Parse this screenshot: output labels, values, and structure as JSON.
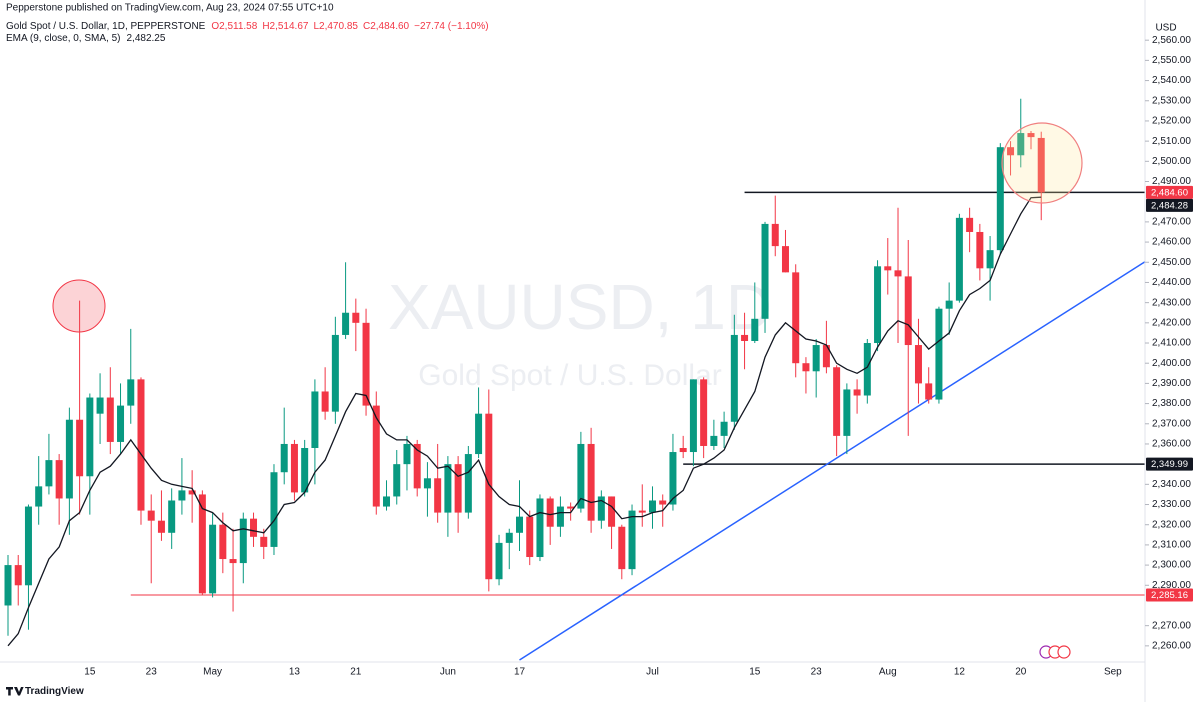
{
  "chart_data": {
    "type": "candlestick",
    "published": "Pepperstone published on TradingView.com, Aug 23, 2024 07:55 UTC+10",
    "title": "Gold Spot / U.S. Dollar, 1D, PEPPERSTONE",
    "ohlc_legend": [
      "O2,511.58",
      "H2,514.67",
      "L2,470.85",
      "C2,484.60",
      "−27.74 (−1.10%)"
    ],
    "watermark": [
      "XAUUSD, 1D",
      "Gold Spot / U.S. Dollar"
    ],
    "currency": "USD",
    "brand": "TradingView",
    "up_color": "#089981",
    "down_color": "#f23645",
    "categories": [
      null,
      null,
      null,
      null,
      null,
      null,
      null,
      null,
      "15",
      null,
      null,
      null,
      null,
      null,
      "23",
      null,
      null,
      null,
      null,
      null,
      "May",
      null,
      null,
      null,
      null,
      null,
      null,
      null,
      "13",
      null,
      null,
      null,
      null,
      null,
      "21",
      null,
      null,
      null,
      null,
      null,
      null,
      null,
      null,
      "Jun",
      null,
      null,
      null,
      null,
      null,
      null,
      "17",
      null,
      null,
      null,
      null,
      null,
      null,
      null,
      null,
      null,
      null,
      null,
      null,
      "Jul",
      null,
      null,
      null,
      null,
      null,
      null,
      null,
      null,
      null,
      "15",
      null,
      null,
      null,
      null,
      null,
      "23",
      null,
      null,
      null,
      null,
      null,
      null,
      "Aug",
      null,
      null,
      null,
      null,
      null,
      null,
      "12",
      null,
      null,
      null,
      null,
      null,
      "20",
      null,
      null,
      null,
      null,
      null,
      null,
      null,
      null,
      "Sep"
    ],
    "open": [
      2280,
      2300,
      2290,
      2329,
      2339,
      2352,
      2333,
      2372,
      2344,
      2375,
      2383,
      2361,
      2379,
      2392,
      2327,
      2322,
      2316,
      2332,
      2337,
      2335,
      2286,
      2320,
      2303,
      2301,
      2323,
      2314,
      2309,
      2346,
      2360,
      2336,
      2358,
      2386,
      2376,
      2414,
      2425,
      2420,
      2379,
      2329,
      2334,
      2350,
      2360,
      2338,
      2343,
      2326,
      2350,
      2326,
      2355,
      2375,
      2293,
      2311,
      2316,
      2324,
      2304,
      2333,
      2319,
      2329,
      2328,
      2360,
      2322,
      2334,
      2319,
      2298,
      2327,
      2326,
      2332,
      2330,
      2358,
      2356,
      2392,
      2359,
      2364,
      2371,
      2414,
      2411,
      2422,
      2469,
      2458,
      2445,
      2400,
      2396,
      2409,
      2398,
      2364,
      2387,
      2384,
      2410,
      2448,
      2446,
      2443,
      2409,
      2390,
      2382,
      2427,
      2431,
      2472,
      2465,
      2447,
      2456,
      2507,
      2503,
      2514,
      2511.58,
      null,
      null,
      null,
      null,
      null,
      null,
      null
    ],
    "high": [
      2305,
      2305,
      2330,
      2354,
      2365,
      2355,
      2378,
      2431,
      2385,
      2395,
      2398,
      2390,
      2417,
      2393,
      2335,
      2337,
      2338,
      2353,
      2347,
      2337,
      2326,
      2326,
      2318,
      2326,
      2326,
      2318,
      2350,
      2378,
      2362,
      2362,
      2392,
      2398,
      2423,
      2450,
      2432,
      2427,
      2386,
      2342,
      2357,
      2364,
      2362,
      2351,
      2360,
      2354,
      2354,
      2359,
      2388,
      2387,
      2315,
      2318,
      2342,
      2327,
      2335,
      2334,
      2334,
      2331,
      2366,
      2368,
      2337,
      2334,
      2320,
      2330,
      2340,
      2339,
      2335,
      2365,
      2364,
      2392,
      2393,
      2372,
      2376,
      2424,
      2425,
      2440,
      2470,
      2483,
      2466,
      2449,
      2403,
      2412,
      2421,
      2399,
      2390,
      2392,
      2412,
      2451,
      2462,
      2477,
      2461,
      2422,
      2398,
      2428,
      2440,
      2474,
      2477,
      2469,
      2463,
      2509,
      2510,
      2531,
      2515,
      2514.67,
      null,
      null,
      null,
      null,
      null,
      null,
      null
    ],
    "low": [
      2265,
      2280,
      2268,
      2320,
      2335,
      2320,
      2315,
      2325,
      2325,
      2360,
      2355,
      2355,
      2370,
      2320,
      2291,
      2312,
      2308,
      2325,
      2321,
      2285,
      2284,
      2296,
      2277,
      2291,
      2309,
      2303,
      2305,
      2340,
      2332,
      2334,
      2340,
      2372,
      2370,
      2412,
      2406,
      2374,
      2325,
      2327,
      2330,
      2337,
      2334,
      2324,
      2321,
      2314,
      2316,
      2323,
      2353,
      2287,
      2290,
      2298,
      2307,
      2300,
      2302,
      2310,
      2314,
      2322,
      2326,
      2316,
      2318,
      2308,
      2293,
      2295,
      2319,
      2318,
      2319,
      2327,
      2353,
      2349,
      2353,
      2357,
      2358,
      2367,
      2397,
      2410,
      2415,
      2453,
      2445,
      2393,
      2385,
      2383,
      2395,
      2354,
      2355,
      2375,
      2380,
      2406,
      2434,
      2410,
      2364,
      2380,
      2380,
      2380,
      2414,
      2430,
      2455,
      2441,
      2431,
      2454,
      2493,
      2497,
      2506,
      2470.85,
      null,
      null,
      null,
      null,
      null,
      null,
      null
    ],
    "close": [
      2300,
      2290,
      2329,
      2339,
      2352,
      2333,
      2372,
      2344,
      2383,
      2383,
      2361,
      2379,
      2392,
      2327,
      2322,
      2316,
      2332,
      2337,
      2335,
      2286,
      2320,
      2303,
      2301,
      2323,
      2314,
      2309,
      2346,
      2360,
      2336,
      2358,
      2386,
      2376,
      2414,
      2425,
      2420,
      2379,
      2329,
      2334,
      2350,
      2360,
      2338,
      2343,
      2326,
      2350,
      2326,
      2355,
      2375,
      2293,
      2311,
      2316,
      2324,
      2304,
      2333,
      2319,
      2329,
      2328,
      2360,
      2322,
      2334,
      2319,
      2298,
      2327,
      2326,
      2332,
      2330,
      2356,
      2356,
      2392,
      2359,
      2364,
      2371,
      2414,
      2411,
      2422,
      2469,
      2458,
      2445,
      2400,
      2396,
      2409,
      2398,
      2364,
      2387,
      2384,
      2410,
      2448,
      2446,
      2443,
      2409,
      2390,
      2382,
      2427,
      2431,
      2472,
      2465,
      2447,
      2456,
      2507,
      2503,
      2514,
      2512,
      2484.6,
      null,
      null,
      null,
      null,
      null,
      null,
      null
    ],
    "indicator": {
      "name": "EMA (9, close, 0, SMA, 5)",
      "value_label": "2,482.25",
      "color": "#131722",
      "values": [
        2260,
        2266,
        2279,
        2291,
        2303,
        2309,
        2322,
        2326,
        2337,
        2346,
        2349,
        2355,
        2362,
        2355,
        2348,
        2342,
        2340,
        2339,
        2338,
        2328,
        2326,
        2321,
        2317,
        2318,
        2317,
        2316,
        2322,
        2330,
        2331,
        2336,
        2346,
        2352,
        2364,
        2376,
        2385,
        2384,
        2373,
        2365,
        2362,
        2362,
        2357,
        2354,
        2348,
        2349,
        2344,
        2346,
        2352,
        2340,
        2334,
        2330,
        2329,
        2324,
        2326,
        2325,
        2326,
        2326,
        2333,
        2331,
        2332,
        2329,
        2323,
        2324,
        2324,
        2326,
        2327,
        2333,
        2337,
        2348,
        2350,
        2353,
        2357,
        2368,
        2377,
        2386,
        2403,
        2414,
        2420,
        2416,
        2412,
        2411,
        2409,
        2400,
        2397,
        2395,
        2398,
        2408,
        2416,
        2421,
        2419,
        2413,
        2407,
        2411,
        2415,
        2426,
        2434,
        2437,
        2441,
        2454,
        2464,
        2474,
        2482,
        2482.25,
        null,
        null,
        null,
        null,
        null,
        null,
        null
      ]
    },
    "ylim": [
      2252,
      2570
    ],
    "yticks": [
      {
        "value": 2560,
        "label": "2,560.00"
      },
      {
        "value": 2550,
        "label": "2,550.00"
      },
      {
        "value": 2540,
        "label": "2,540.00"
      },
      {
        "value": 2530,
        "label": "2,530.00"
      },
      {
        "value": 2520,
        "label": "2,520.00"
      },
      {
        "value": 2510,
        "label": "2,510.00"
      },
      {
        "value": 2500,
        "label": "2,500.00"
      },
      {
        "value": 2490,
        "label": "2,490.00"
      },
      {
        "value": 2470,
        "label": "2,470.00"
      },
      {
        "value": 2460,
        "label": "2,460.00"
      },
      {
        "value": 2450,
        "label": "2,450.00"
      },
      {
        "value": 2440,
        "label": "2,440.00"
      },
      {
        "value": 2430,
        "label": "2,430.00"
      },
      {
        "value": 2420,
        "label": "2,420.00"
      },
      {
        "value": 2410,
        "label": "2,410.00"
      },
      {
        "value": 2400,
        "label": "2,400.00"
      },
      {
        "value": 2390,
        "label": "2,390.00"
      },
      {
        "value": 2380,
        "label": "2,380.00"
      },
      {
        "value": 2370,
        "label": "2,370.00"
      },
      {
        "value": 2360,
        "label": "2,360.00"
      },
      {
        "value": 2340,
        "label": "2,340.00"
      },
      {
        "value": 2330,
        "label": "2,330.00"
      },
      {
        "value": 2320,
        "label": "2,320.00"
      },
      {
        "value": 2310,
        "label": "2,310.00"
      },
      {
        "value": 2300,
        "label": "2,300.00"
      },
      {
        "value": 2290,
        "label": "2,290.00"
      },
      {
        "value": 2270,
        "label": "2,270.00"
      },
      {
        "value": 2260,
        "label": "2,260.00"
      }
    ],
    "price_labels": [
      {
        "value": 2484.6,
        "label": "2,484.60",
        "color": "#f23645"
      },
      {
        "value": 2484.28,
        "label": "2,484.28",
        "color": "#131722"
      },
      {
        "value": 2349.99,
        "label": "2,349.99",
        "color": "#131722"
      },
      {
        "value": 2285.16,
        "label": "2,285.16",
        "color": "#f23645"
      }
    ],
    "levels": [
      {
        "value": 2484.6,
        "from": 72,
        "color": "#131722"
      },
      {
        "value": 2349.99,
        "from": 66,
        "color": "#131722"
      },
      {
        "value": 2285.16,
        "from": 12,
        "color": "#f23645"
      }
    ],
    "trendline": {
      "color": "#2962ff",
      "points": [
        [
          50,
          2253
        ],
        [
          112,
          2453
        ]
      ]
    },
    "grid": false
  }
}
